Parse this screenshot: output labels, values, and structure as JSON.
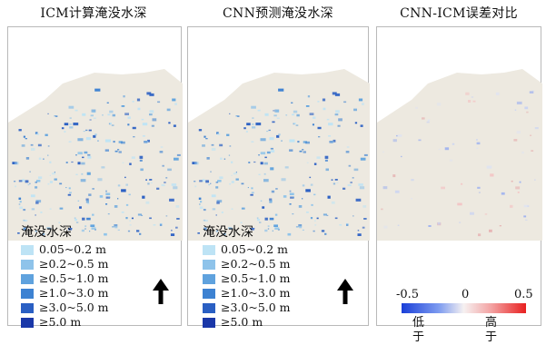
{
  "panels": [
    {
      "title": "ICM计算淹没水深"
    },
    {
      "title": "CNN预测淹没水深"
    },
    {
      "title": "CNN-ICM误差对比"
    }
  ],
  "depth_legend": {
    "title": "淹没水深",
    "items": [
      {
        "label": "0.05~0.2 m",
        "color": "#bde3f5"
      },
      {
        "label": "≥0.2~0.5 m",
        "color": "#8ec3ea"
      },
      {
        "label": "≥0.5~1.0 m",
        "color": "#5fa2de"
      },
      {
        "label": "≥1.0~3.0 m",
        "color": "#3d82d2"
      },
      {
        "label": "≥3.0~5.0 m",
        "color": "#2a5fc3"
      },
      {
        "label": "≥5.0 m",
        "color": "#1a37a8"
      }
    ]
  },
  "error_colorbar": {
    "min_label": "-0.5",
    "mid_label": "0",
    "max_label": "0.5",
    "low_text": "低于",
    "high_text": "高于",
    "low_color": "#1a3fd8",
    "high_color": "#e82020"
  },
  "colors": {
    "land": "#ede9e0",
    "border": "#b9b9b9"
  },
  "icons": {
    "north_arrow": "north-arrow-icon"
  }
}
